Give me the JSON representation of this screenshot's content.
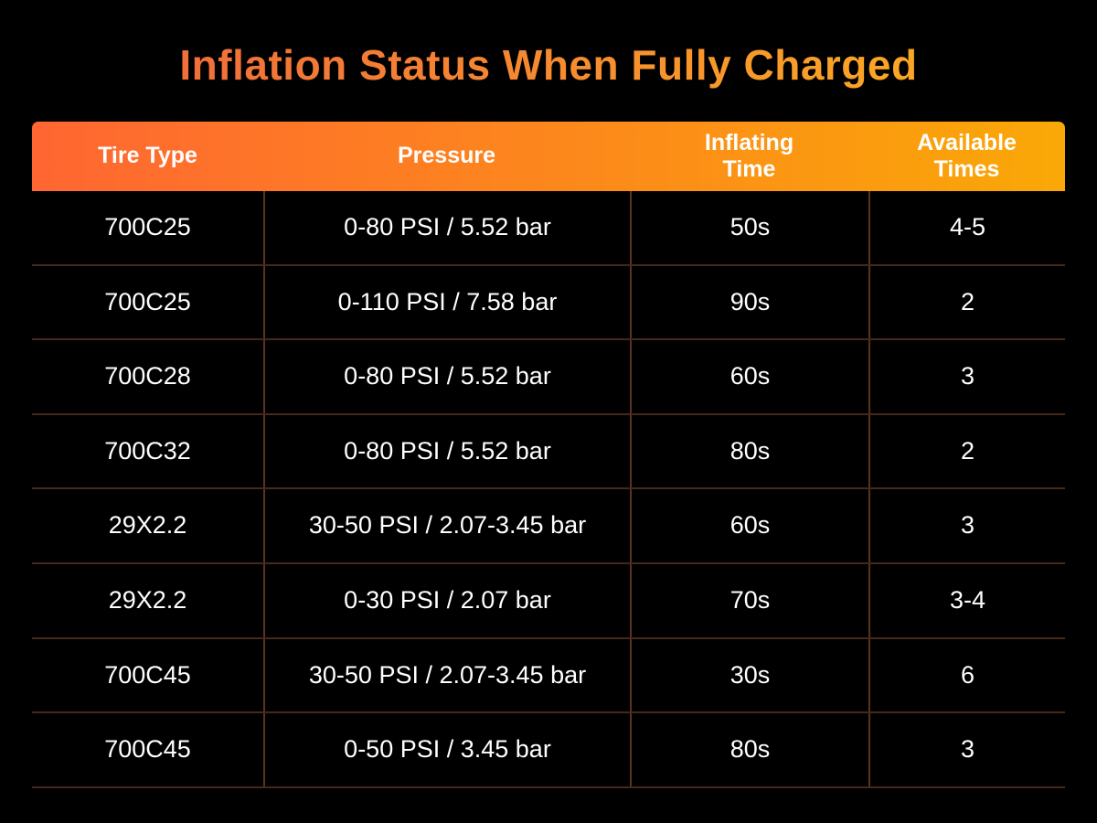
{
  "chart_data": {
    "type": "table",
    "title": "Inflation Status When Fully Charged",
    "columns": [
      "Tire Type",
      "Pressure",
      "Inflating Time",
      "Available Times"
    ],
    "rows": [
      [
        "700C25",
        "0-80 PSI / 5.52 bar",
        "50s",
        "4-5"
      ],
      [
        "700C25",
        "0-110 PSI / 7.58 bar",
        "90s",
        "2"
      ],
      [
        "700C28",
        "0-80 PSI / 5.52 bar",
        "60s",
        "3"
      ],
      [
        "700C32",
        "0-80 PSI / 5.52 bar",
        "80s",
        "2"
      ],
      [
        "29X2.2",
        "30-50 PSI / 2.07-3.45 bar",
        "60s",
        "3"
      ],
      [
        "29X2.2",
        "0-30 PSI / 2.07 bar",
        "70s",
        "3-4"
      ],
      [
        "700C45",
        "30-50 PSI / 2.07-3.45 bar",
        "30s",
        "6"
      ],
      [
        "700C45",
        "0-50 PSI / 3.45 bar",
        "80s",
        "3"
      ]
    ]
  },
  "display": {
    "header_labels": [
      "Tire Type",
      "Pressure",
      "Inflating\nTime",
      "Available\nTimes"
    ]
  },
  "colors": {
    "background": "#000000",
    "title_gradient_start": "#F0693C",
    "title_gradient_end": "#FBAC22",
    "header_gradient_start": "#FF6632",
    "header_gradient_end": "#FAA807",
    "row_divider": "#45291A",
    "column_divider": "#5A341F",
    "text": "#FFFFFF"
  }
}
